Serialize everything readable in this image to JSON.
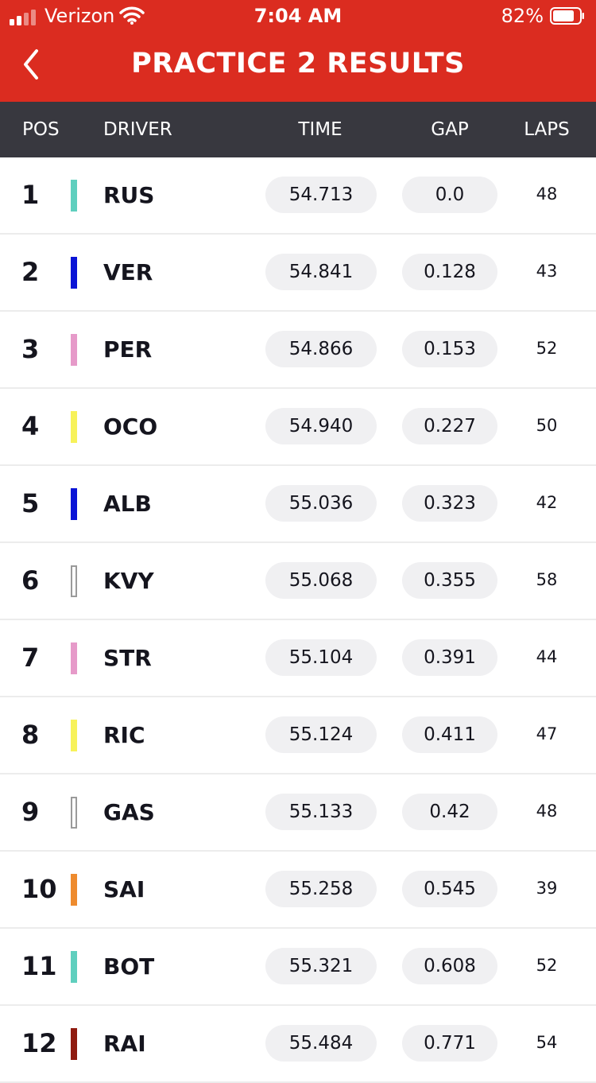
{
  "status_bar": {
    "carrier": "Verizon",
    "time": "7:04 AM",
    "battery_percent": "82%",
    "signal_icon": "signal-bars-icon",
    "wifi_icon": "wifi-icon",
    "battery_icon": "battery-icon"
  },
  "header": {
    "title": "PRACTICE 2 RESULTS",
    "back_icon": "chevron-left-icon",
    "color": "#db2c20"
  },
  "columns": {
    "pos": "POS",
    "driver": "DRIVER",
    "time": "TIME",
    "gap": "GAP",
    "laps": "LAPS"
  },
  "results": [
    {
      "pos": "1",
      "driver": "RUS",
      "time": "54.713",
      "gap": "0.0",
      "laps": "48",
      "team_color": "#5fcfbe",
      "outline": false
    },
    {
      "pos": "2",
      "driver": "VER",
      "time": "54.841",
      "gap": "0.128",
      "laps": "43",
      "team_color": "#0a14d6",
      "outline": false
    },
    {
      "pos": "3",
      "driver": "PER",
      "time": "54.866",
      "gap": "0.153",
      "laps": "52",
      "team_color": "#e69ac9",
      "outline": false
    },
    {
      "pos": "4",
      "driver": "OCO",
      "time": "54.940",
      "gap": "0.227",
      "laps": "50",
      "team_color": "#f7f25a",
      "outline": false
    },
    {
      "pos": "5",
      "driver": "ALB",
      "time": "55.036",
      "gap": "0.323",
      "laps": "42",
      "team_color": "#0a14d6",
      "outline": false
    },
    {
      "pos": "6",
      "driver": "KVY",
      "time": "55.068",
      "gap": "0.355",
      "laps": "58",
      "team_color": "#ffffff",
      "outline": true
    },
    {
      "pos": "7",
      "driver": "STR",
      "time": "55.104",
      "gap": "0.391",
      "laps": "44",
      "team_color": "#e69ac9",
      "outline": false
    },
    {
      "pos": "8",
      "driver": "RIC",
      "time": "55.124",
      "gap": "0.411",
      "laps": "47",
      "team_color": "#f7f25a",
      "outline": false
    },
    {
      "pos": "9",
      "driver": "GAS",
      "time": "55.133",
      "gap": "0.42",
      "laps": "48",
      "team_color": "#ffffff",
      "outline": true
    },
    {
      "pos": "10",
      "driver": "SAI",
      "time": "55.258",
      "gap": "0.545",
      "laps": "39",
      "team_color": "#ee8b2e",
      "outline": false
    },
    {
      "pos": "11",
      "driver": "BOT",
      "time": "55.321",
      "gap": "0.608",
      "laps": "52",
      "team_color": "#5fcfbe",
      "outline": false
    },
    {
      "pos": "12",
      "driver": "RAI",
      "time": "55.484",
      "gap": "0.771",
      "laps": "54",
      "team_color": "#8f1b10",
      "outline": false
    }
  ]
}
